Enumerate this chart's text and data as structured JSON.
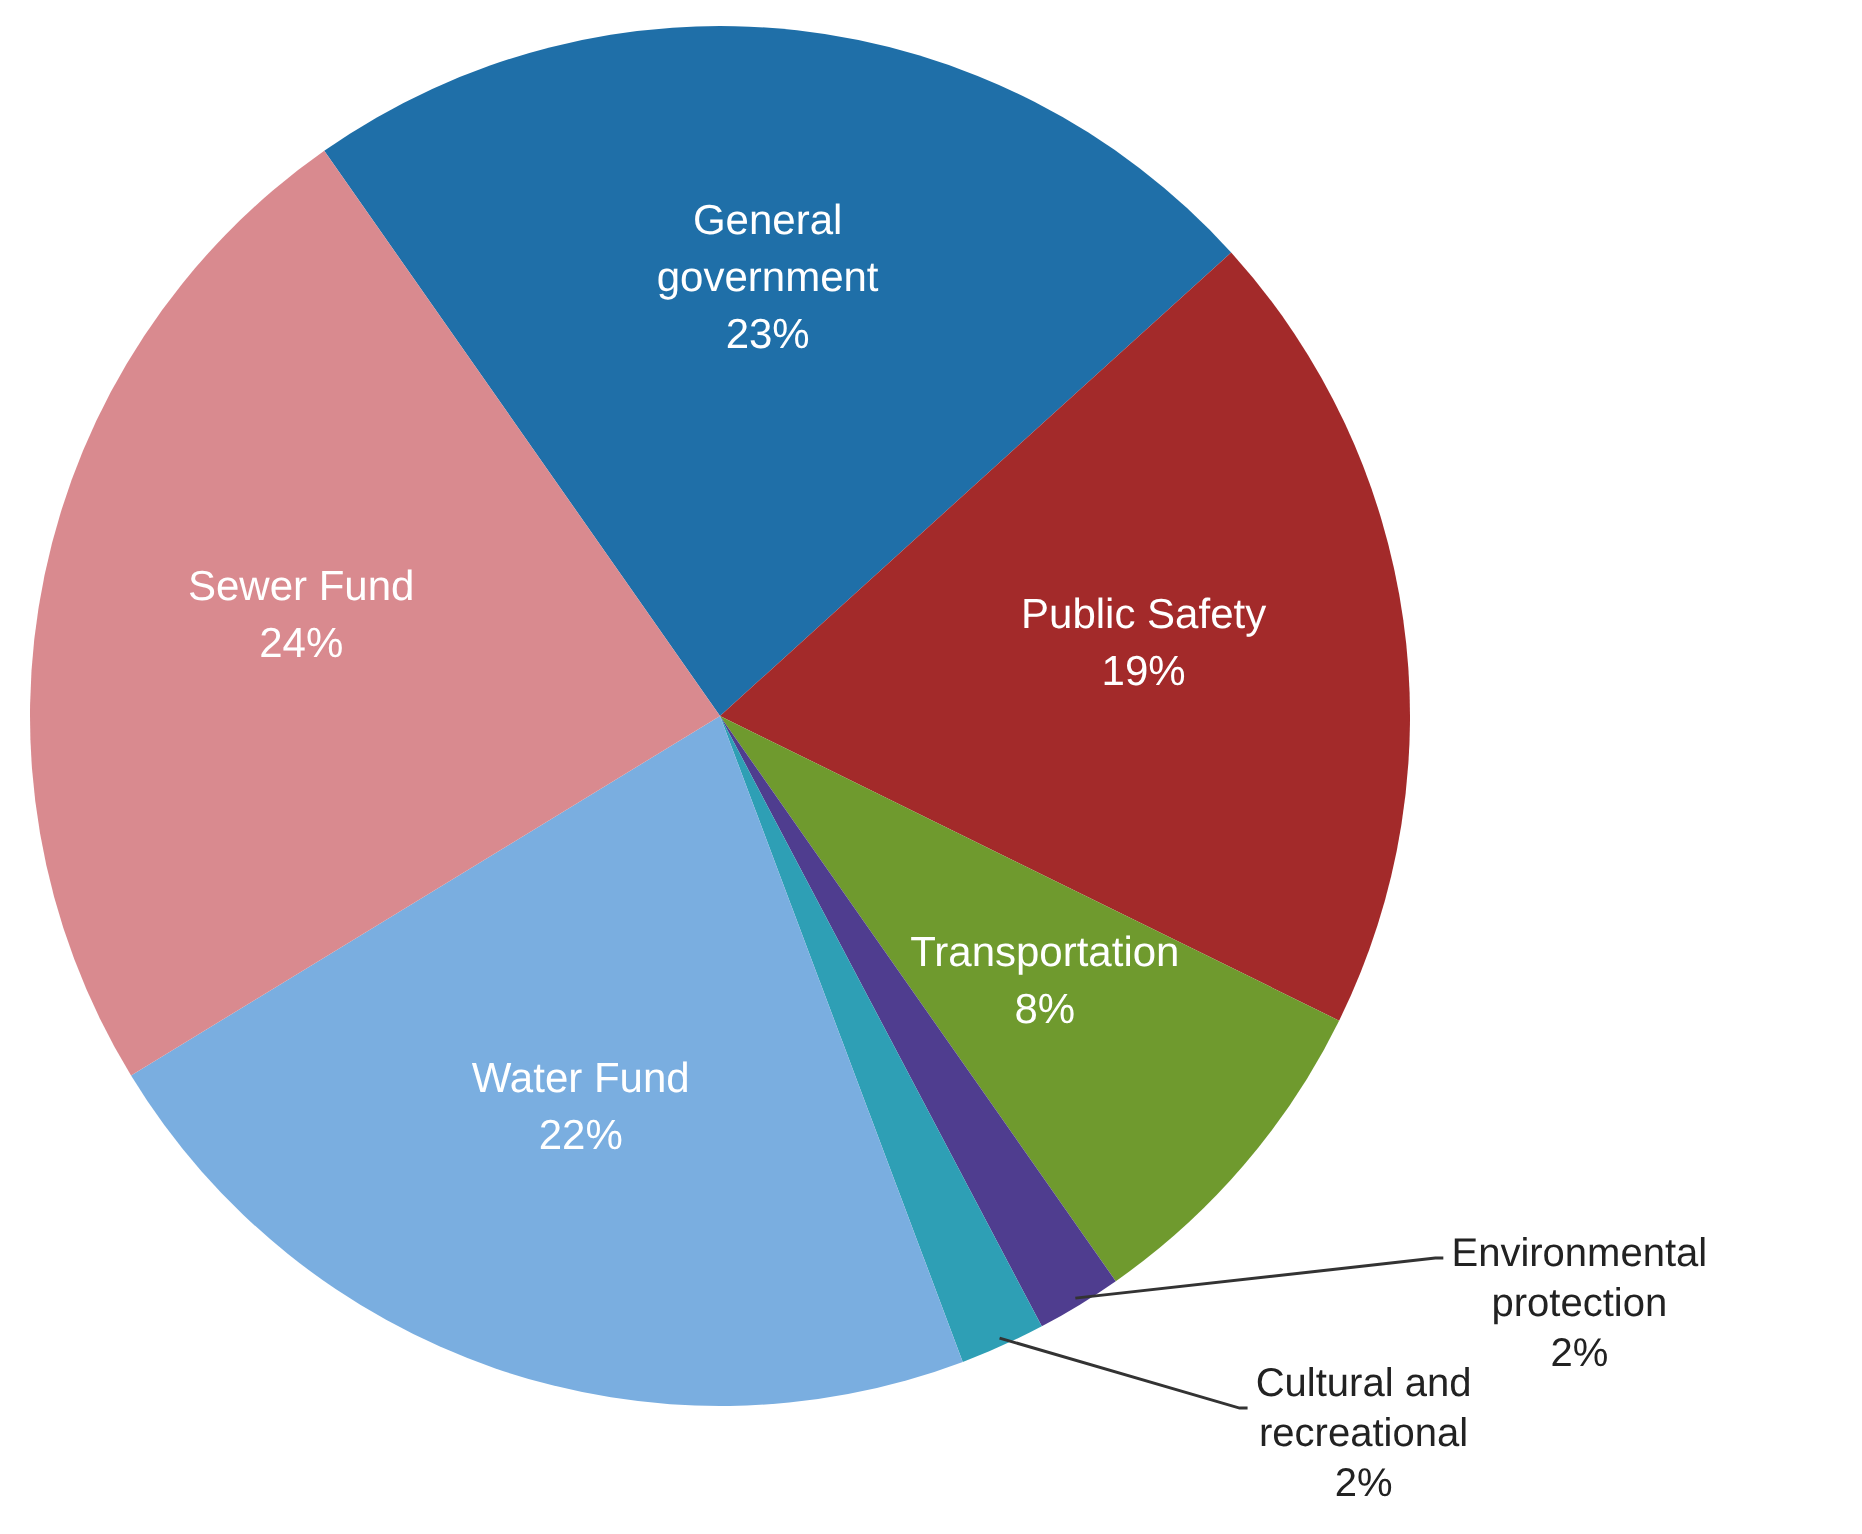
{
  "chart_data": {
    "type": "pie",
    "categories": [
      "General government",
      "Public Safety",
      "Transportation",
      "Environmental protection",
      "Cultural and recreational",
      "Water Fund",
      "Sewer Fund"
    ],
    "values": [
      23,
      19,
      8,
      2,
      2,
      22,
      24
    ],
    "value_labels": [
      "23%",
      "19%",
      "8%",
      "2%",
      "2%",
      "22%",
      "24%"
    ],
    "colors": [
      "#1f6fa8",
      "#a32a2a",
      "#6f9a2e",
      "#4f3d8f",
      "#2e9fb5",
      "#7aaee0",
      "#d98a8f"
    ]
  }
}
